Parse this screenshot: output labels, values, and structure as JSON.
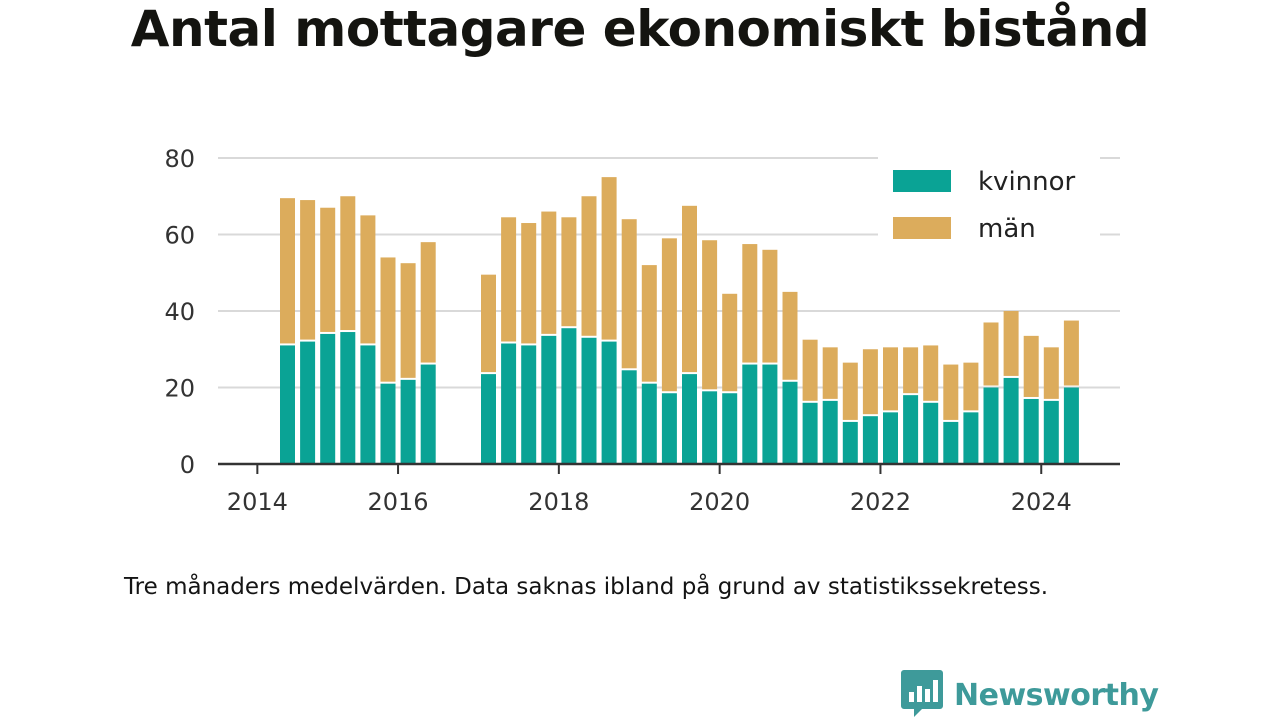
{
  "title": "Antal mottagare ekonomiskt bistånd",
  "note": "Tre månaders medelvärden. Data saknas ibland på grund av statistikssekretess.",
  "brand": {
    "name": "Newsworthy",
    "icon": "bar-chart-speech-bubble-icon",
    "color": "#3e9a9a"
  },
  "colors": {
    "kvinnor": "#0aa395",
    "man": "#dcac5c",
    "grid": "#d9d9d9",
    "axis": "#333333"
  },
  "chart_data": {
    "type": "bar",
    "stacked": true,
    "title": "Antal mottagare ekonomiskt bistånd",
    "xlabel": "",
    "ylabel": "",
    "ylim": [
      0,
      80
    ],
    "yticks": [
      0,
      20,
      40,
      60,
      80
    ],
    "xticks": [
      "2014",
      "2016",
      "2018",
      "2020",
      "2022",
      "2024"
    ],
    "grid": true,
    "legend_position": "top-right",
    "categories": [
      "2014-Q3",
      "2014-Q4",
      "2015-Q1",
      "2015-Q2",
      "2015-Q3",
      "2015-Q4",
      "2016-Q1",
      "2016-Q2",
      "2016-Q3",
      "2016-Q4",
      "2017-Q1",
      "2017-Q2",
      "2017-Q3",
      "2017-Q4",
      "2018-Q1",
      "2018-Q2",
      "2018-Q3",
      "2018-Q4",
      "2019-Q1",
      "2019-Q2",
      "2019-Q3",
      "2019-Q4",
      "2020-Q1",
      "2020-Q2",
      "2020-Q3",
      "2020-Q4",
      "2021-Q1",
      "2021-Q2",
      "2021-Q3",
      "2021-Q4",
      "2022-Q1",
      "2022-Q2",
      "2022-Q3",
      "2022-Q4",
      "2023-Q1",
      "2023-Q2",
      "2023-Q3",
      "2023-Q4",
      "2024-Q1",
      "2024-Q2"
    ],
    "series": [
      {
        "name": "kvinnor",
        "color": "#0aa395",
        "values": [
          31,
          32,
          34,
          34.5,
          31,
          21,
          22,
          26,
          null,
          null,
          23.5,
          31.5,
          31,
          33.5,
          35.5,
          33,
          32,
          24.5,
          21,
          18.5,
          23.5,
          19,
          18.5,
          26,
          26,
          21.5,
          16,
          16.5,
          11,
          12.5,
          13.5,
          18,
          16,
          11,
          13.5,
          20,
          22.5,
          17,
          16.5,
          20
        ]
      },
      {
        "name": "män",
        "color": "#dcac5c",
        "values": [
          38.5,
          37,
          33,
          35.5,
          34,
          33,
          30.5,
          32,
          null,
          null,
          26,
          33,
          32,
          32.5,
          29,
          37,
          43,
          39.5,
          31,
          40.5,
          44,
          39.5,
          26,
          31.5,
          30,
          23.5,
          16.5,
          14,
          15.5,
          17.5,
          17,
          12.5,
          15,
          15,
          13,
          17,
          17.5,
          16.5,
          14,
          17.5
        ]
      }
    ]
  }
}
